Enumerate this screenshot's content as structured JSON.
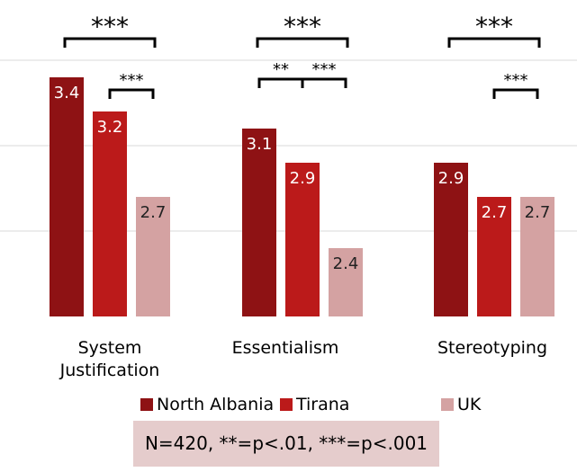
{
  "chart_data": {
    "type": "bar",
    "categories": [
      "System Justification",
      "Essentialism",
      "Stereotyping"
    ],
    "series": [
      {
        "name": "North Albania",
        "values": [
          3.4,
          3.1,
          2.9
        ]
      },
      {
        "name": "Tirana",
        "values": [
          3.2,
          2.9,
          2.7
        ]
      },
      {
        "name": "UK",
        "values": [
          2.7,
          2.4,
          2.7
        ]
      }
    ],
    "ylim": [
      2.0,
      3.6
    ],
    "grid": true,
    "legend": "bottom",
    "data_labels": true,
    "colors": [
      "#8e1214",
      "#bb1a1a",
      "#d4a2a2"
    ],
    "significance": [
      {
        "category": 0,
        "from": 0,
        "to": 2,
        "label": "***"
      },
      {
        "category": 0,
        "from": 1,
        "to": 2,
        "label": "***"
      },
      {
        "category": 1,
        "from": 0,
        "to": 2,
        "label": "***"
      },
      {
        "category": 1,
        "from": 0,
        "to": 1,
        "label": "**"
      },
      {
        "category": 1,
        "from": 1,
        "to": 2,
        "label": "***"
      },
      {
        "category": 2,
        "from": 0,
        "to": 2,
        "label": "***"
      },
      {
        "category": 2,
        "from": 1,
        "to": 2,
        "label": "***"
      }
    ]
  },
  "note": "N=420, **=p<.01, ***=p<.001"
}
